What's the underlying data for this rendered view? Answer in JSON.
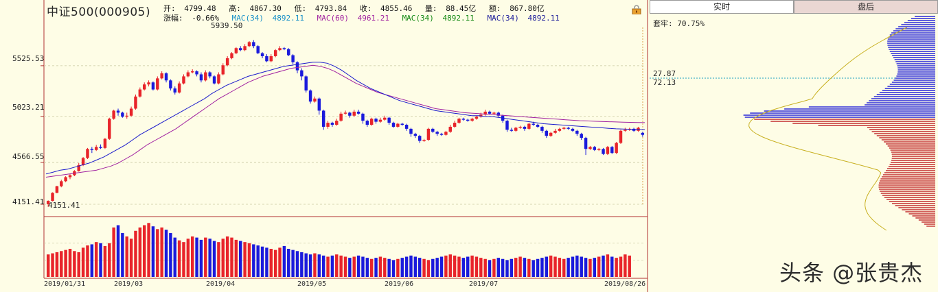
{
  "header": {
    "title": "中证500(000905)",
    "open_label": "开:",
    "open": "4799.48",
    "high_label": "高:",
    "high": "4867.30",
    "low_label": "低:",
    "low": "4793.84",
    "close_label": "收:",
    "close": "4855.46",
    "vol_label": "量:",
    "vol": "88.45亿",
    "amt_label": "额:",
    "amt": "867.80亿",
    "change_label": "涨幅:",
    "change": "-0.66%",
    "ma1": "MAC(34)",
    "ma1_val": "4892.11",
    "ma2": "MAC(60)",
    "ma2_val": "4961.21",
    "ma3": "MAC(34)",
    "ma3_val": "4892.11",
    "ma4": "MAC(34)",
    "ma4_val": "4892.11"
  },
  "y_axis": [
    "5525.53",
    "5023.21",
    "4566.55",
    "4151.41"
  ],
  "x_axis": [
    "2019/01/31",
    "2019/03",
    "2019/04",
    "2019/05",
    "2019/06",
    "2019/07",
    "2019/08/26"
  ],
  "annotations": {
    "high_mark": "5939.50",
    "low_mark": "4151.41"
  },
  "tabs": {
    "realtime": "实时",
    "after_hours": "盘后"
  },
  "right_panel": {
    "lock_ratio": "套牢: 70.75%",
    "level1": "27.87",
    "level2": "72.13"
  },
  "watermark": "头条 @张贵杰",
  "colors": {
    "up": "#e8242a",
    "down": "#1a1adc",
    "ma34": "#1a1acc",
    "ma60": "#a020a0",
    "grid": "#c8c8a0",
    "bg": "#fefde6"
  },
  "chart_data": {
    "type": "candlestick",
    "ylim": [
      4151.41,
      5939.5
    ],
    "y_ticks": [
      5525.53,
      5023.21,
      4566.55,
      4151.41
    ],
    "x_ticks": [
      "2019/01/31",
      "2019/03",
      "2019/04",
      "2019/05",
      "2019/06",
      "2019/07",
      "2019/08/26"
    ],
    "candles": [
      [
        4152,
        4185,
        4125,
        4190
      ],
      [
        4185,
        4265,
        4180,
        4270
      ],
      [
        4265,
        4330,
        4260,
        4335
      ],
      [
        4330,
        4380,
        4320,
        4395
      ],
      [
        4380,
        4420,
        4370,
        4430
      ],
      [
        4420,
        4440,
        4400,
        4450
      ],
      [
        4440,
        4480,
        4430,
        4490
      ],
      [
        4480,
        4540,
        4475,
        4560
      ],
      [
        4540,
        4610,
        4530,
        4620
      ],
      [
        4610,
        4700,
        4600,
        4710
      ],
      [
        4700,
        4690,
        4660,
        4720
      ],
      [
        4690,
        4720,
        4680,
        4740
      ],
      [
        4720,
        4710,
        4700,
        4745
      ],
      [
        4710,
        4800,
        4700,
        4810
      ],
      [
        4800,
        5000,
        4790,
        5010
      ],
      [
        5000,
        5080,
        4990,
        5090
      ],
      [
        5080,
        5060,
        5030,
        5100
      ],
      [
        5060,
        5020,
        5010,
        5070
      ],
      [
        5020,
        5030,
        5000,
        5060
      ],
      [
        5030,
        5100,
        5020,
        5120
      ],
      [
        5100,
        5220,
        5090,
        5240
      ],
      [
        5220,
        5290,
        5210,
        5310
      ],
      [
        5290,
        5340,
        5280,
        5360
      ],
      [
        5340,
        5360,
        5320,
        5380
      ],
      [
        5360,
        5290,
        5280,
        5370
      ],
      [
        5290,
        5400,
        5280,
        5420
      ],
      [
        5400,
        5450,
        5390,
        5470
      ],
      [
        5450,
        5380,
        5360,
        5460
      ],
      [
        5380,
        5300,
        5280,
        5390
      ],
      [
        5300,
        5260,
        5240,
        5320
      ],
      [
        5260,
        5350,
        5250,
        5370
      ],
      [
        5350,
        5420,
        5340,
        5440
      ],
      [
        5420,
        5460,
        5410,
        5480
      ],
      [
        5460,
        5470,
        5450,
        5490
      ],
      [
        5470,
        5440,
        5420,
        5480
      ],
      [
        5440,
        5380,
        5360,
        5460
      ],
      [
        5380,
        5460,
        5370,
        5480
      ],
      [
        5460,
        5420,
        5400,
        5470
      ],
      [
        5420,
        5350,
        5340,
        5430
      ],
      [
        5350,
        5440,
        5340,
        5460
      ],
      [
        5440,
        5530,
        5430,
        5550
      ],
      [
        5530,
        5600,
        5520,
        5620
      ],
      [
        5600,
        5650,
        5590,
        5660
      ],
      [
        5650,
        5700,
        5640,
        5710
      ],
      [
        5700,
        5680,
        5670,
        5720
      ],
      [
        5680,
        5720,
        5670,
        5740
      ],
      [
        5720,
        5760,
        5710,
        5770
      ],
      [
        5760,
        5720,
        5700,
        5780
      ],
      [
        5720,
        5650,
        5640,
        5730
      ],
      [
        5650,
        5620,
        5600,
        5660
      ],
      [
        5620,
        5570,
        5560,
        5640
      ],
      [
        5570,
        5620,
        5560,
        5640
      ],
      [
        5620,
        5680,
        5610,
        5690
      ],
      [
        5680,
        5700,
        5670,
        5720
      ],
      [
        5700,
        5690,
        5680,
        5710
      ],
      [
        5690,
        5630,
        5620,
        5700
      ],
      [
        5630,
        5560,
        5540,
        5640
      ],
      [
        5560,
        5480,
        5450,
        5570
      ],
      [
        5480,
        5420,
        5380,
        5500
      ],
      [
        5420,
        5280,
        5260,
        5430
      ],
      [
        5280,
        5170,
        5150,
        5290
      ],
      [
        5170,
        5200,
        5160,
        5220
      ],
      [
        5200,
        5080,
        5040,
        5210
      ],
      [
        5080,
        4920,
        4890,
        5090
      ],
      [
        4920,
        4960,
        4900,
        4980
      ],
      [
        4960,
        4940,
        4920,
        4970
      ],
      [
        4940,
        4980,
        4930,
        5000
      ],
      [
        4980,
        5050,
        4970,
        5070
      ],
      [
        5050,
        5060,
        5040,
        5080
      ],
      [
        5060,
        5030,
        5010,
        5070
      ],
      [
        5030,
        5070,
        5020,
        5090
      ],
      [
        5070,
        5050,
        5040,
        5090
      ],
      [
        5050,
        4980,
        4950,
        5060
      ],
      [
        4980,
        4940,
        4920,
        4990
      ],
      [
        4940,
        5000,
        4930,
        5010
      ],
      [
        5000,
        4970,
        4950,
        5010
      ],
      [
        4970,
        4990,
        4960,
        5010
      ],
      [
        4990,
        5010,
        4980,
        5030
      ],
      [
        5010,
        4960,
        4940,
        5020
      ],
      [
        4960,
        4920,
        4910,
        4970
      ],
      [
        4920,
        4950,
        4910,
        4960
      ],
      [
        4950,
        4940,
        4930,
        4960
      ],
      [
        4940,
        4900,
        4880,
        4950
      ],
      [
        4900,
        4850,
        4820,
        4910
      ],
      [
        4850,
        4830,
        4810,
        4860
      ],
      [
        4830,
        4780,
        4760,
        4840
      ],
      [
        4780,
        4790,
        4770,
        4800
      ],
      [
        4790,
        4900,
        4780,
        4910
      ],
      [
        4900,
        4870,
        4860,
        4910
      ],
      [
        4870,
        4850,
        4830,
        4880
      ],
      [
        4850,
        4840,
        4830,
        4860
      ],
      [
        4840,
        4870,
        4830,
        4880
      ],
      [
        4870,
        4920,
        4860,
        4940
      ],
      [
        4920,
        4960,
        4910,
        4980
      ],
      [
        4960,
        5000,
        4950,
        5010
      ],
      [
        5000,
        4990,
        4980,
        5010
      ],
      [
        4990,
        4980,
        4970,
        5000
      ],
      [
        4980,
        5000,
        4970,
        5010
      ],
      [
        5000,
        5020,
        4990,
        5030
      ],
      [
        5020,
        5040,
        5010,
        5060
      ],
      [
        5040,
        5070,
        5030,
        5090
      ],
      [
        5070,
        5050,
        5040,
        5080
      ],
      [
        5050,
        5060,
        5040,
        5070
      ],
      [
        5060,
        5030,
        5020,
        5070
      ],
      [
        5030,
        4980,
        4960,
        5040
      ],
      [
        4980,
        4890,
        4870,
        4990
      ],
      [
        4890,
        4880,
        4870,
        4910
      ],
      [
        4880,
        4910,
        4870,
        4920
      ],
      [
        4910,
        4920,
        4900,
        4930
      ],
      [
        4920,
        4900,
        4880,
        4930
      ],
      [
        4900,
        4950,
        4890,
        4960
      ],
      [
        4950,
        4940,
        4930,
        4970
      ],
      [
        4940,
        4920,
        4910,
        4950
      ],
      [
        4920,
        4880,
        4860,
        4930
      ],
      [
        4880,
        4830,
        4810,
        4890
      ],
      [
        4830,
        4860,
        4820,
        4870
      ],
      [
        4860,
        4880,
        4850,
        4900
      ],
      [
        4880,
        4900,
        4870,
        4910
      ],
      [
        4900,
        4910,
        4890,
        4920
      ],
      [
        4910,
        4900,
        4890,
        4920
      ],
      [
        4900,
        4880,
        4870,
        4910
      ],
      [
        4880,
        4850,
        4830,
        4890
      ],
      [
        4850,
        4810,
        4790,
        4860
      ],
      [
        4810,
        4700,
        4640,
        4820
      ],
      [
        4700,
        4720,
        4690,
        4730
      ],
      [
        4720,
        4690,
        4680,
        4730
      ],
      [
        4690,
        4700,
        4680,
        4710
      ],
      [
        4700,
        4650,
        4640,
        4710
      ],
      [
        4650,
        4720,
        4640,
        4730
      ],
      [
        4720,
        4660,
        4650,
        4730
      ],
      [
        4660,
        4760,
        4650,
        4770
      ],
      [
        4760,
        4880,
        4750,
        4890
      ],
      [
        4880,
        4890,
        4870,
        4910
      ],
      [
        4890,
        4900,
        4880,
        4910
      ],
      [
        4900,
        4880,
        4870,
        4910
      ],
      [
        4880,
        4910,
        4870,
        4920
      ],
      [
        4860,
        4840,
        4820,
        4870
      ]
    ],
    "volumes": [
      40,
      42,
      44,
      46,
      48,
      50,
      46,
      44,
      52,
      56,
      58,
      62,
      60,
      55,
      60,
      88,
      92,
      78,
      72,
      68,
      82,
      88,
      92,
      96,
      90,
      85,
      88,
      84,
      78,
      70,
      65,
      62,
      68,
      72,
      70,
      66,
      70,
      68,
      64,
      62,
      68,
      72,
      70,
      66,
      64,
      62,
      60,
      58,
      56,
      54,
      52,
      50,
      48,
      52,
      55,
      50,
      48,
      46,
      44,
      42,
      40,
      42,
      40,
      38,
      36,
      38,
      40,
      38,
      36,
      34,
      36,
      38,
      36,
      34,
      32,
      34,
      36,
      34,
      32,
      30,
      32,
      34,
      36,
      38,
      36,
      34,
      32,
      30,
      32,
      34,
      36,
      38,
      40,
      38,
      36,
      34,
      36,
      38,
      36,
      34,
      32,
      30,
      32,
      34,
      32,
      30,
      32,
      34,
      36,
      34,
      32,
      30,
      32,
      34,
      36,
      38,
      36,
      34,
      32,
      34,
      36,
      38,
      36,
      34,
      32,
      34,
      36,
      38,
      40,
      36,
      34,
      36,
      40,
      38
    ],
    "ma34": [
      4452,
      4470,
      4490,
      4500,
      4520,
      4540,
      4560,
      4590,
      4620,
      4660,
      4700,
      4740,
      4790,
      4840,
      4880,
      4920,
      4960,
      5000,
      5040,
      5080,
      5120,
      5160,
      5200,
      5250,
      5290,
      5330,
      5360,
      5390,
      5420,
      5440,
      5460,
      5480,
      5500,
      5520,
      5530,
      5540,
      5550,
      5560,
      5560,
      5550,
      5520,
      5480,
      5430,
      5380,
      5340,
      5300,
      5270,
      5240,
      5210,
      5180,
      5160,
      5140,
      5120,
      5100,
      5080,
      5070,
      5060,
      5050,
      5040,
      5030,
      5030,
      5020,
      5020,
      5010,
      5000,
      4990,
      4980,
      4970,
      4960,
      4950,
      4945,
      4940,
      4935,
      4930,
      4925,
      4920,
      4915,
      4910,
      4905,
      4900,
      4897,
      4895,
      4893,
      4892
    ],
    "ma60": [
      4420,
      4430,
      4440,
      4450,
      4460,
      4470,
      4480,
      4490,
      4510,
      4530,
      4560,
      4600,
      4640,
      4690,
      4740,
      4780,
      4820,
      4860,
      4900,
      4950,
      5000,
      5050,
      5100,
      5150,
      5200,
      5240,
      5280,
      5320,
      5360,
      5390,
      5420,
      5440,
      5460,
      5480,
      5500,
      5510,
      5520,
      5530,
      5520,
      5500,
      5470,
      5430,
      5390,
      5350,
      5320,
      5290,
      5260,
      5240,
      5220,
      5200,
      5180,
      5160,
      5140,
      5120,
      5100,
      5090,
      5080,
      5070,
      5060,
      5055,
      5050,
      5045,
      5040,
      5035,
      5030,
      5025,
      5020,
      5015,
      5010,
      5005,
      5000,
      4995,
      4990,
      4985,
      4980,
      4978,
      4975,
      4972,
      4970,
      4968,
      4966,
      4964,
      4962,
      4961
    ]
  }
}
